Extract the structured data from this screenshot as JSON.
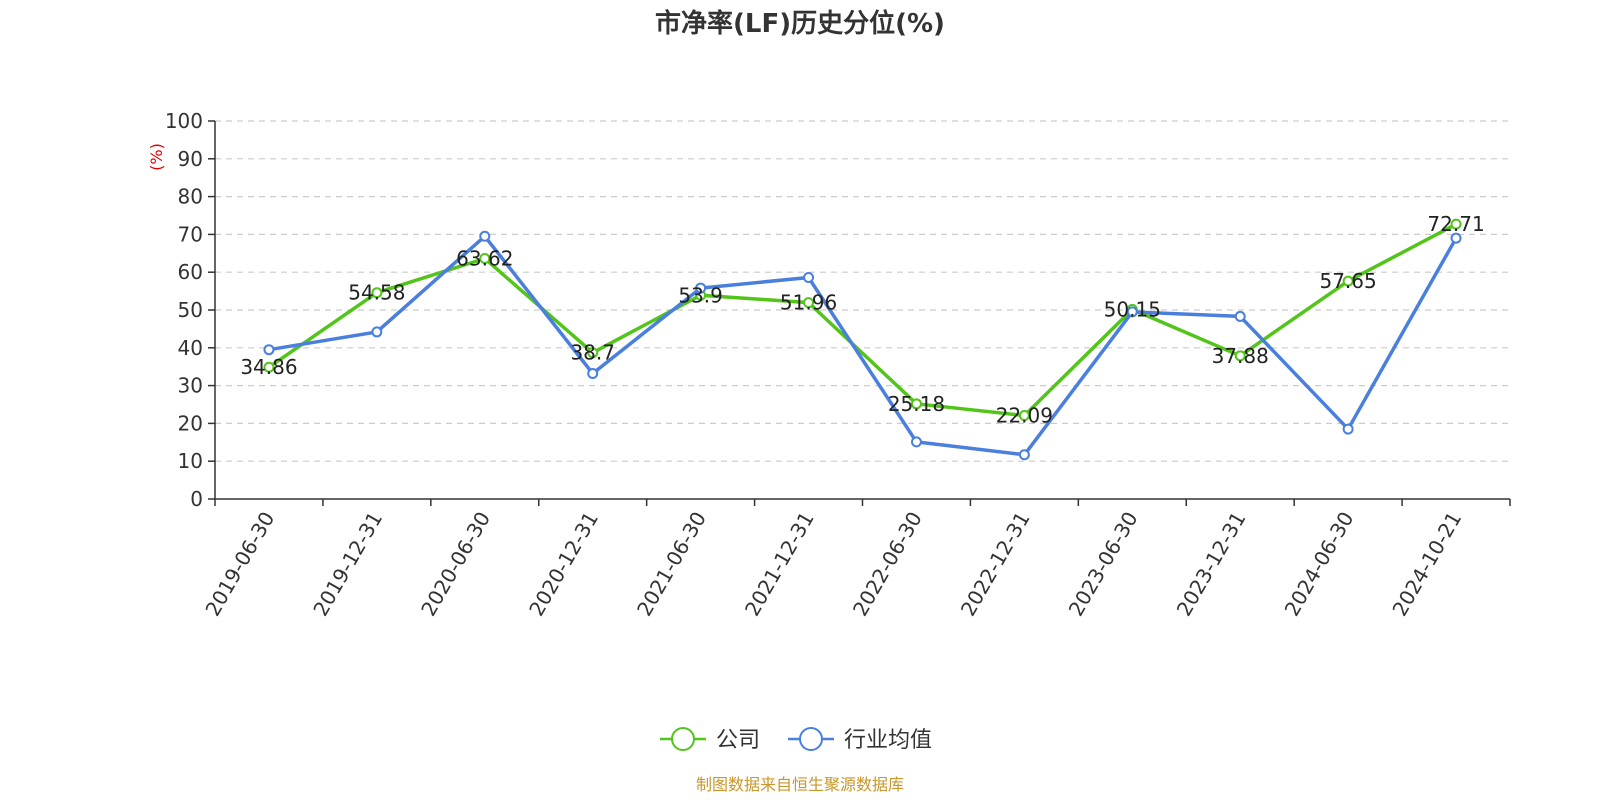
{
  "chart_data": {
    "type": "line",
    "title": "市净率(LF)历史分位(%)",
    "ylabel": "(%)",
    "ylim": [
      0,
      100
    ],
    "yticks": [
      0,
      10,
      20,
      30,
      40,
      50,
      60,
      70,
      80,
      90,
      100
    ],
    "categories": [
      "2019-06-30",
      "2019-12-31",
      "2020-06-30",
      "2020-12-31",
      "2021-06-30",
      "2021-12-31",
      "2022-06-30",
      "2022-12-31",
      "2023-06-30",
      "2023-12-31",
      "2024-06-30",
      "2024-10-21"
    ],
    "grid": true,
    "legend_position": "bottom",
    "series": [
      {
        "name": "公司",
        "color": "#52c41a",
        "values": [
          34.86,
          54.58,
          63.62,
          38.7,
          53.9,
          51.96,
          25.18,
          22.09,
          50.15,
          37.88,
          57.65,
          72.71
        ],
        "labels": [
          "34.86",
          "54.58",
          "63.62",
          "38.7",
          "53.9",
          "51.96",
          "25.18",
          "22.09",
          "50.15",
          "37.88",
          "57.65",
          "72.71"
        ]
      },
      {
        "name": "行业均值",
        "color": "#4a7fde",
        "values": [
          39.5,
          44.2,
          69.5,
          33.2,
          55.8,
          58.6,
          15.1,
          11.7,
          49.5,
          48.3,
          18.5,
          69.0
        ]
      }
    ]
  },
  "source": "制图数据来自恒生聚源数据库",
  "colors": {
    "axis": "#333333",
    "grid": "#cccccc",
    "unit": "#e00000",
    "source": "#c8962a"
  }
}
